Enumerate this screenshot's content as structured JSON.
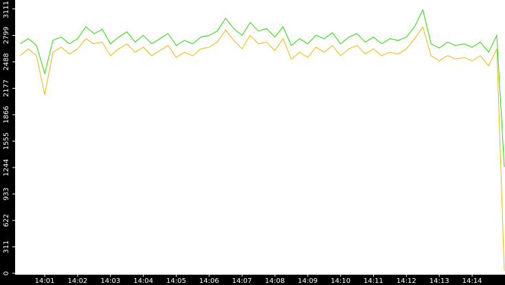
{
  "chart_data": {
    "type": "line",
    "x": [
      0.25,
      0.5,
      0.75,
      1.0,
      1.25,
      1.5,
      1.75,
      2.0,
      2.25,
      2.5,
      2.75,
      3.0,
      3.25,
      3.5,
      3.75,
      4.0,
      4.25,
      4.5,
      4.75,
      5.0,
      5.25,
      5.5,
      5.75,
      6.0,
      6.25,
      6.5,
      6.75,
      7.0,
      7.25,
      7.5,
      7.75,
      8.0,
      8.25,
      8.5,
      8.75,
      9.0,
      9.25,
      9.5,
      9.75,
      10.0,
      10.25,
      10.5,
      10.75,
      11.0,
      11.25,
      11.5,
      11.75,
      12.0,
      12.25,
      12.5,
      12.75,
      13.0,
      13.25,
      13.5,
      13.75,
      14.0,
      14.25,
      14.5,
      14.75,
      14.98
    ],
    "series": [
      {
        "color": "#22dd00",
        "values": [
          2700,
          2760,
          2680,
          2350,
          2740,
          2780,
          2700,
          2760,
          2900,
          2820,
          2870,
          2700,
          2780,
          2840,
          2720,
          2800,
          2700,
          2760,
          2820,
          2680,
          2740,
          2700,
          2780,
          2800,
          2850,
          3000,
          2880,
          2800,
          2950,
          2850,
          2880,
          2780,
          2900,
          2680,
          2760,
          2700,
          2800,
          2760,
          2830,
          2700,
          2780,
          2820,
          2720,
          2780,
          2700,
          2760,
          2740,
          2780,
          2900,
          3100,
          2700,
          2650,
          2720,
          2680,
          2700,
          2660,
          2720,
          2600,
          2800,
          1250
        ]
      },
      {
        "color": "#f0b400",
        "values": [
          2560,
          2640,
          2560,
          2100,
          2600,
          2660,
          2580,
          2640,
          2760,
          2700,
          2720,
          2560,
          2640,
          2700,
          2600,
          2660,
          2560,
          2620,
          2680,
          2540,
          2600,
          2560,
          2640,
          2660,
          2720,
          2860,
          2740,
          2640,
          2800,
          2700,
          2720,
          2620,
          2760,
          2520,
          2600,
          2540,
          2660,
          2600,
          2680,
          2560,
          2640,
          2680,
          2580,
          2640,
          2560,
          2600,
          2580,
          2640,
          2760,
          2900,
          2560,
          2500,
          2560,
          2520,
          2540,
          2500,
          2560,
          2440,
          2640,
          30
        ]
      }
    ],
    "xlim": [
      0.1,
      15.0
    ],
    "xticks": [
      {
        "value": 1,
        "label": "14:01"
      },
      {
        "value": 2,
        "label": "14:02"
      },
      {
        "value": 3,
        "label": "14:03"
      },
      {
        "value": 4,
        "label": "14:04"
      },
      {
        "value": 5,
        "label": "14:05"
      },
      {
        "value": 6,
        "label": "14:06"
      },
      {
        "value": 7,
        "label": "14:07"
      },
      {
        "value": 8,
        "label": "14:08"
      },
      {
        "value": 9,
        "label": "14:09"
      },
      {
        "value": 10,
        "label": "14:10"
      },
      {
        "value": 11,
        "label": "14:11"
      },
      {
        "value": 12,
        "label": "14:12"
      },
      {
        "value": 13,
        "label": "14:13"
      },
      {
        "value": 14,
        "label": "14:14"
      }
    ],
    "ylim": [
      0,
      3215
    ],
    "yticks": [
      0,
      311,
      622,
      933,
      1244,
      1555,
      1866,
      2177,
      2488,
      2799,
      3111
    ]
  }
}
